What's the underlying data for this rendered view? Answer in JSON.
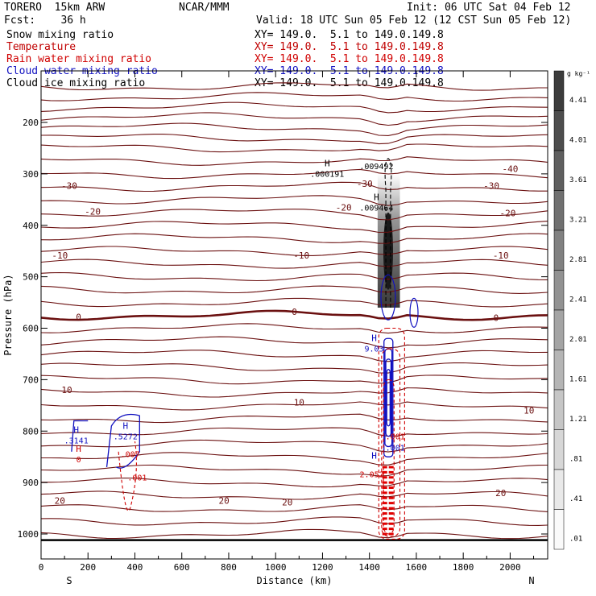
{
  "header": {
    "model": "TORERO  15km ARW",
    "org": "NCAR/MMM",
    "init": "Init: 06 UTC Sat 04 Feb 12",
    "fcst": "Fcst:    36 h",
    "valid": "Valid: 18 UTC Sun 05 Feb 12 (12 CST Sun 05 Feb 12)"
  },
  "fields": [
    {
      "name": "Snow mixing ratio",
      "xy": "XY= 149.0.  5.1 to 149.0.149.8",
      "color": "#000000"
    },
    {
      "name": "Temperature",
      "xy": "XY= 149.0.  5.1 to 149.0.149.8",
      "color": "#c00000"
    },
    {
      "name": "Rain water mixing ratio",
      "xy": "XY= 149.0.  5.1 to 149.0.149.8",
      "color": "#d00000"
    },
    {
      "name": "Cloud water mixing ratio",
      "xy": "XY= 149.0.  5.1 to 149.0.149.8",
      "color": "#1010c0"
    },
    {
      "name": "Cloud ice mixing ratio",
      "xy": "XY= 149.0.  5.1 to 149.0.149.8",
      "color": "#000000"
    }
  ],
  "chart_data": {
    "type": "contour",
    "xlabel": "Distance (km)",
    "ylabel": "Pressure (hPa)",
    "xlim": [
      0,
      2160
    ],
    "ylim": [
      1050,
      100
    ],
    "x_ticks": [
      0,
      200,
      400,
      600,
      800,
      1000,
      1200,
      1400,
      1600,
      1800,
      2000
    ],
    "y_ticks": [
      200,
      300,
      400,
      500,
      600,
      700,
      800,
      900,
      1000
    ],
    "left_end_label": "S",
    "right_end_label": "N",
    "colorbar": {
      "unit": "g kg⁻¹",
      "ticks": [
        "4.41",
        "4.01",
        "3.61",
        "3.21",
        "2.81",
        "2.41",
        "2.01",
        "1.61",
        "1.21",
        ".81",
        ".41",
        ".01"
      ]
    },
    "temperature_labels": [
      {
        "x": 120,
        "p": 323,
        "text": "-30"
      },
      {
        "x": 1380,
        "p": 319,
        "text": "-30"
      },
      {
        "x": 1920,
        "p": 323,
        "text": "-30"
      },
      {
        "x": 2000,
        "p": 290,
        "text": "-40"
      },
      {
        "x": 220,
        "p": 373,
        "text": "-20"
      },
      {
        "x": 1290,
        "p": 365,
        "text": "-20"
      },
      {
        "x": 1990,
        "p": 376,
        "text": "-20"
      },
      {
        "x": 80,
        "p": 458,
        "text": "-10"
      },
      {
        "x": 1110,
        "p": 458,
        "text": "-10"
      },
      {
        "x": 1960,
        "p": 458,
        "text": "-10"
      },
      {
        "x": 160,
        "p": 578,
        "text": "0"
      },
      {
        "x": 1080,
        "p": 568,
        "text": "0"
      },
      {
        "x": 1940,
        "p": 580,
        "text": "0"
      },
      {
        "x": 110,
        "p": 720,
        "text": "10"
      },
      {
        "x": 1100,
        "p": 744,
        "text": "10"
      },
      {
        "x": 2080,
        "p": 760,
        "text": "10"
      },
      {
        "x": 80,
        "p": 935,
        "text": "20"
      },
      {
        "x": 780,
        "p": 935,
        "text": "20"
      },
      {
        "x": 1050,
        "p": 938,
        "text": "20"
      },
      {
        "x": 1960,
        "p": 920,
        "text": "20"
      }
    ],
    "extrema_labels": [
      {
        "x": 1220,
        "p": 290,
        "letter": "H",
        "value": ".000191",
        "color": "#000000"
      },
      {
        "x": 1430,
        "p": 275,
        "letter": "",
        "value": ".009492",
        "color": "#000000"
      },
      {
        "x": 1430,
        "p": 356,
        "letter": "H",
        "value": ".009464",
        "color": "#000000"
      },
      {
        "x": 1420,
        "p": 630,
        "letter": "H",
        "value": "9.03",
        "color": "#1010c0"
      },
      {
        "x": 360,
        "p": 800,
        "letter": "H",
        "value": ".5272",
        "color": "#1010c0"
      },
      {
        "x": 150,
        "p": 808,
        "letter": "H",
        "value": ".3141",
        "color": "#1010c0"
      },
      {
        "x": 380,
        "p": 835,
        "letter": "",
        "value": ".007",
        "color": "#d00000"
      },
      {
        "x": 160,
        "p": 845,
        "letter": "H",
        "value": "0",
        "color": "#d00000"
      },
      {
        "x": 410,
        "p": 880,
        "letter": "",
        "value": ".001",
        "color": "#d00000"
      },
      {
        "x": 1510,
        "p": 800,
        "letter": "",
        "value": ".001",
        "color": "#d00000"
      },
      {
        "x": 1510,
        "p": 822,
        "letter": "",
        "value": ".001",
        "color": "#1010c0"
      },
      {
        "x": 1420,
        "p": 858,
        "letter": "H",
        "value": "",
        "color": "#1010c0"
      },
      {
        "x": 1410,
        "p": 874,
        "letter": "",
        "value": "2.052",
        "color": "#d00000"
      }
    ]
  }
}
